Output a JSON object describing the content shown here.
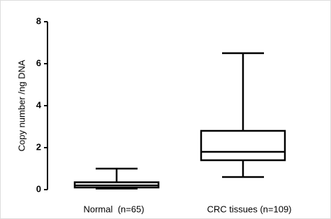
{
  "chart_data": {
    "type": "box",
    "y_label": "Copy number /ng DNA",
    "categories": [
      "Normal  (n=65)",
      "CRC tissues (n=109)"
    ],
    "boxes": [
      {
        "min": 0.05,
        "q1": 0.1,
        "median": 0.2,
        "q3": 0.35,
        "max": 1.0
      },
      {
        "min": 0.6,
        "q1": 1.4,
        "median": 1.8,
        "q3": 2.8,
        "max": 6.5
      }
    ],
    "color": "#000000",
    "ylim": [
      0,
      8
    ],
    "yticks": [
      0,
      2,
      4,
      6,
      8
    ]
  }
}
